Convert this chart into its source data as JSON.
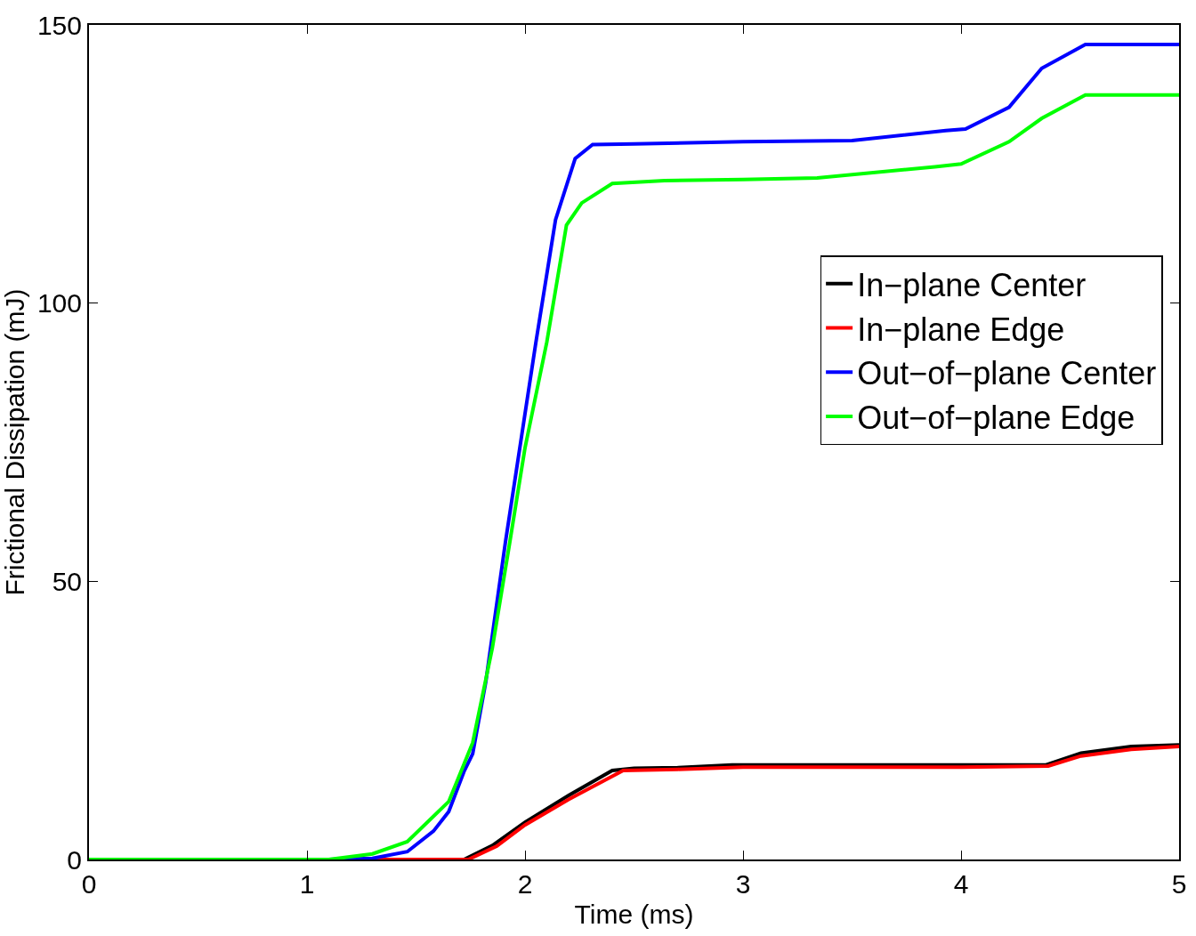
{
  "chart_data": {
    "type": "line",
    "xlabel": "Time (ms)",
    "ylabel": "Frictional Dissipation (mJ)",
    "xlim": [
      0,
      5
    ],
    "ylim": [
      0,
      150
    ],
    "xticks": [
      0,
      1,
      2,
      3,
      4,
      5
    ],
    "yticks": [
      0,
      50,
      100,
      150
    ],
    "grid": false,
    "legend": "right",
    "line_style": "solid",
    "marker": "none",
    "series": [
      {
        "name": "In−plane Center",
        "color": "#000000",
        "x": [
          0,
          1.72,
          1.85,
          2.0,
          2.2,
          2.4,
          2.5,
          2.7,
          2.95,
          3.5,
          4.0,
          4.39,
          4.55,
          4.78,
          5.0
        ],
        "values": [
          0,
          0,
          2.5,
          6.7,
          11.5,
          16,
          16.4,
          16.5,
          17,
          17,
          17,
          17,
          19.1,
          20.3,
          20.6
        ]
      },
      {
        "name": "In−plane Edge",
        "color": "#ff0000",
        "x": [
          0,
          1.74,
          1.87,
          2.0,
          2.2,
          2.45,
          2.7,
          3.0,
          3.5,
          4.0,
          4.4,
          4.55,
          4.78,
          5.0
        ],
        "values": [
          0,
          0,
          2.4,
          6.2,
          10.8,
          16.0,
          16.2,
          16.6,
          16.6,
          16.6,
          16.8,
          18.6,
          19.8,
          20.3
        ]
      },
      {
        "name": "Out−of−plane Center",
        "color": "#0000ff",
        "x": [
          0,
          1.1,
          1.3,
          1.46,
          1.58,
          1.65,
          1.72,
          1.76,
          1.82,
          1.91,
          1.98,
          2.05,
          2.14,
          2.23,
          2.31,
          2.5,
          3.0,
          3.5,
          3.93,
          4.02,
          4.22,
          4.37,
          4.57,
          5.0
        ],
        "values": [
          0,
          0,
          0.2,
          1.4,
          5.1,
          8.6,
          15.8,
          19,
          31.9,
          57,
          75,
          93,
          115,
          126,
          128.5,
          128.6,
          129,
          129.2,
          131,
          131.3,
          135.2,
          142.2,
          146.5,
          146.5
        ]
      },
      {
        "name": "Out−of−plane Edge",
        "color": "#00ff00",
        "x": [
          0,
          1.1,
          1.3,
          1.46,
          1.65,
          1.76,
          1.85,
          1.93,
          2.0,
          2.1,
          2.19,
          2.26,
          2.4,
          2.64,
          3.0,
          3.34,
          3.88,
          4.0,
          4.22,
          4.37,
          4.57,
          5.0
        ],
        "values": [
          0,
          0,
          1.0,
          3.2,
          10.4,
          21,
          38,
          57,
          74,
          93,
          114,
          118,
          121.5,
          122,
          122.2,
          122.5,
          124.5,
          125,
          129,
          133.2,
          137.4,
          137.4
        ]
      }
    ]
  }
}
